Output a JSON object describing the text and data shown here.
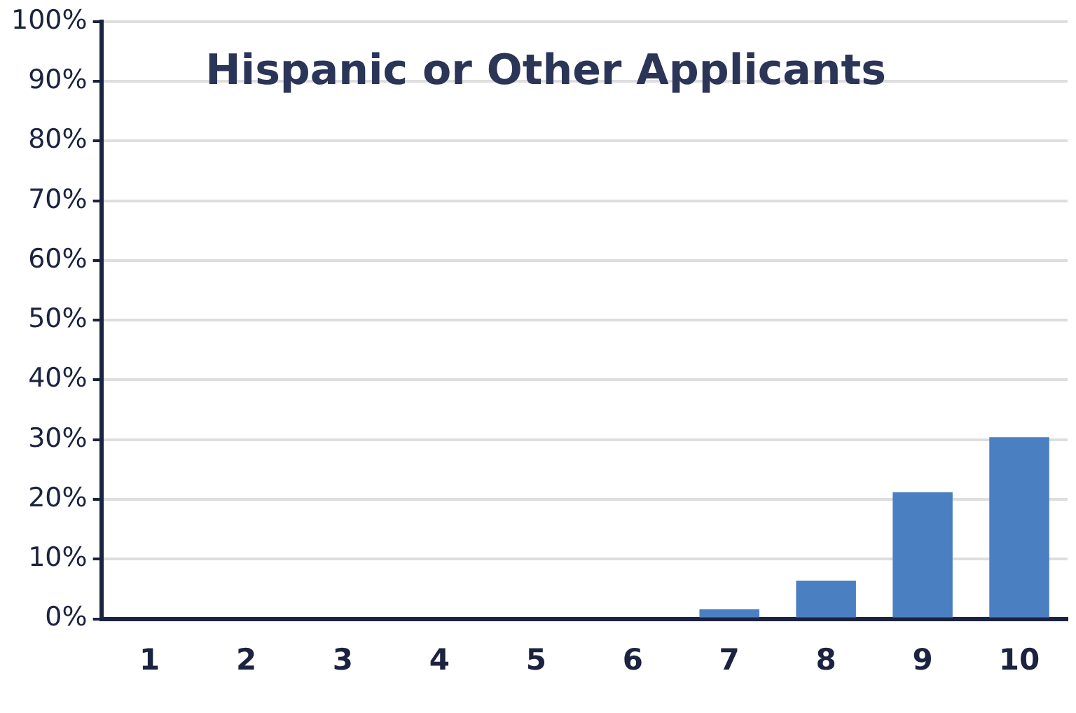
{
  "chart_data": {
    "type": "bar",
    "title": "Hispanic or Other Applicants",
    "categories": [
      "1",
      "2",
      "3",
      "4",
      "5",
      "6",
      "7",
      "8",
      "9",
      "10"
    ],
    "values": [
      0,
      0,
      0,
      0,
      0,
      0,
      1.6,
      6.4,
      21.2,
      30.4
    ],
    "color": "#4a7fc1",
    "ylim": [
      0,
      100
    ],
    "yticks": [
      {
        "value": 0,
        "label": "0%"
      },
      {
        "value": 10,
        "label": "10%"
      },
      {
        "value": 20,
        "label": "20%"
      },
      {
        "value": 30,
        "label": "30%"
      },
      {
        "value": 40,
        "label": "40%"
      },
      {
        "value": 50,
        "label": "50%"
      },
      {
        "value": 60,
        "label": "60%"
      },
      {
        "value": 70,
        "label": "70%"
      },
      {
        "value": 80,
        "label": "80%"
      },
      {
        "value": 90,
        "label": "90%"
      },
      {
        "value": 100,
        "label": "100%"
      }
    ],
    "grid": "y",
    "legend": false
  }
}
